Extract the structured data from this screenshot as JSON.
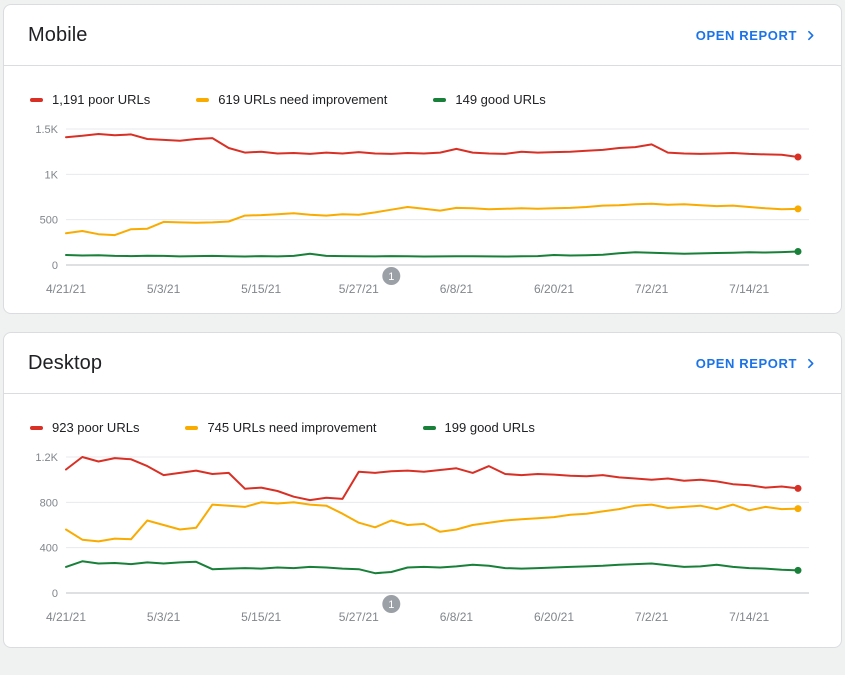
{
  "colors": {
    "link": "#1a73e8",
    "poor": "#d93025",
    "needs_improvement": "#f9ab00",
    "good": "#188038",
    "annotation_badge": "#9aa0a6"
  },
  "cards": [
    {
      "title": "Mobile",
      "open_report_label": "OPEN REPORT",
      "legend": [
        {
          "label": "1,191 poor URLs",
          "color": "#d93025"
        },
        {
          "label": "619 URLs need improvement",
          "color": "#f9ab00"
        },
        {
          "label": "149 good URLs",
          "color": "#188038"
        }
      ]
    },
    {
      "title": "Desktop",
      "open_report_label": "OPEN REPORT",
      "legend": [
        {
          "label": "923 poor URLs",
          "color": "#d93025"
        },
        {
          "label": "745 URLs need improvement",
          "color": "#f9ab00"
        },
        {
          "label": "199 good URLs",
          "color": "#188038"
        }
      ]
    }
  ],
  "chart_data": [
    {
      "type": "line",
      "title": "Mobile",
      "x_tick_labels": [
        "4/21/21",
        "5/3/21",
        "5/15/21",
        "5/27/21",
        "6/8/21",
        "6/20/21",
        "7/2/21",
        "7/14/21"
      ],
      "x_tick_indices": [
        0,
        6,
        12,
        18,
        24,
        30,
        36,
        42
      ],
      "points_step_days": 2,
      "ylim": [
        0,
        1500
      ],
      "y_tick_values": [
        0,
        500,
        1000,
        1500
      ],
      "y_tick_labels": [
        "0",
        "500",
        "1K",
        "1.5K"
      ],
      "grid": true,
      "legend_position": "top",
      "annotation": {
        "label": "1",
        "index": 20
      },
      "series": [
        {
          "name": "poor URLs",
          "current": 1191,
          "color": "#d93025",
          "values": [
            1410,
            1425,
            1445,
            1430,
            1440,
            1390,
            1380,
            1370,
            1390,
            1400,
            1290,
            1240,
            1250,
            1230,
            1235,
            1225,
            1240,
            1230,
            1245,
            1230,
            1225,
            1235,
            1230,
            1240,
            1280,
            1240,
            1230,
            1225,
            1250,
            1240,
            1245,
            1250,
            1260,
            1270,
            1290,
            1300,
            1330,
            1240,
            1230,
            1225,
            1230,
            1235,
            1225,
            1220,
            1215,
            1191
          ]
        },
        {
          "name": "URLs need improvement",
          "current": 619,
          "color": "#f9ab00",
          "values": [
            350,
            375,
            340,
            330,
            395,
            400,
            475,
            470,
            465,
            470,
            480,
            545,
            550,
            560,
            570,
            555,
            545,
            560,
            555,
            580,
            610,
            640,
            620,
            600,
            630,
            625,
            615,
            620,
            625,
            620,
            625,
            630,
            640,
            655,
            660,
            670,
            675,
            665,
            670,
            660,
            650,
            655,
            640,
            625,
            615,
            619
          ]
        },
        {
          "name": "good URLs",
          "current": 149,
          "color": "#188038",
          "values": [
            110,
            105,
            108,
            100,
            98,
            102,
            100,
            95,
            98,
            100,
            96,
            94,
            98,
            95,
            100,
            125,
            100,
            98,
            96,
            95,
            98,
            96,
            94,
            95,
            97,
            96,
            95,
            94,
            96,
            98,
            110,
            105,
            108,
            112,
            130,
            140,
            135,
            130,
            125,
            128,
            132,
            135,
            140,
            138,
            142,
            149
          ]
        }
      ]
    },
    {
      "type": "line",
      "title": "Desktop",
      "x_tick_labels": [
        "4/21/21",
        "5/3/21",
        "5/15/21",
        "5/27/21",
        "6/8/21",
        "6/20/21",
        "7/2/21",
        "7/14/21"
      ],
      "x_tick_indices": [
        0,
        6,
        12,
        18,
        24,
        30,
        36,
        42
      ],
      "points_step_days": 2,
      "ylim": [
        0,
        1200
      ],
      "y_tick_values": [
        0,
        400,
        800,
        1200
      ],
      "y_tick_labels": [
        "0",
        "400",
        "800",
        "1.2K"
      ],
      "grid": true,
      "legend_position": "top",
      "annotation": {
        "label": "1",
        "index": 20
      },
      "series": [
        {
          "name": "poor URLs",
          "current": 923,
          "color": "#d93025",
          "values": [
            1090,
            1200,
            1160,
            1190,
            1180,
            1120,
            1040,
            1060,
            1080,
            1050,
            1060,
            920,
            930,
            900,
            850,
            820,
            840,
            830,
            1070,
            1060,
            1075,
            1080,
            1070,
            1085,
            1100,
            1060,
            1120,
            1050,
            1040,
            1050,
            1045,
            1035,
            1030,
            1040,
            1020,
            1010,
            1000,
            1010,
            990,
            1000,
            985,
            960,
            950,
            930,
            940,
            923
          ]
        },
        {
          "name": "URLs need improvement",
          "current": 745,
          "color": "#f9ab00",
          "values": [
            560,
            470,
            455,
            480,
            475,
            640,
            600,
            560,
            575,
            780,
            770,
            760,
            800,
            790,
            800,
            780,
            770,
            700,
            620,
            580,
            640,
            600,
            610,
            540,
            560,
            600,
            620,
            640,
            650,
            660,
            670,
            690,
            700,
            720,
            740,
            770,
            780,
            750,
            760,
            770,
            740,
            780,
            730,
            760,
            740,
            745
          ]
        },
        {
          "name": "good URLs",
          "current": 199,
          "color": "#188038",
          "values": [
            230,
            280,
            260,
            265,
            255,
            270,
            260,
            270,
            275,
            210,
            215,
            220,
            215,
            225,
            220,
            230,
            225,
            215,
            210,
            175,
            185,
            225,
            230,
            225,
            235,
            250,
            240,
            220,
            215,
            220,
            225,
            230,
            235,
            240,
            250,
            255,
            260,
            245,
            230,
            235,
            250,
            230,
            220,
            215,
            205,
            199
          ]
        }
      ]
    }
  ]
}
